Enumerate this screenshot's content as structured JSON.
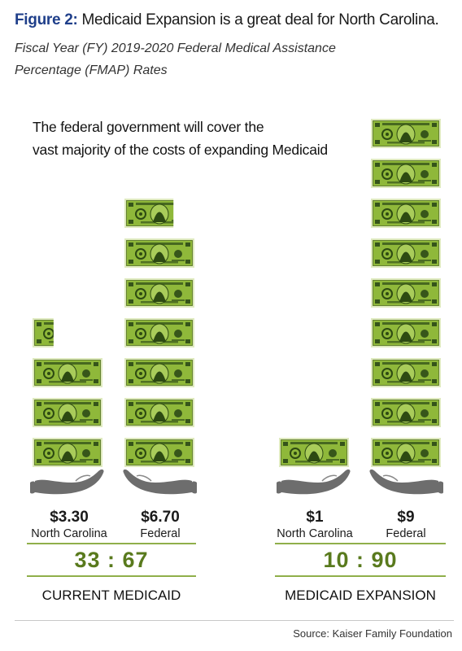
{
  "title": {
    "lead": "Figure 2:",
    "rest": " Medicaid Expansion is a great deal for North Carolina."
  },
  "subtitle_line1": "Fiscal Year (FY) 2019-2020 Federal Medical Assistance",
  "subtitle_line2": "Percentage (FMAP) Rates",
  "annotation_line1": "The federal government will cover the",
  "annotation_line2": "vast majority of the costs of expanding Medicaid",
  "source": "Source: Kaiser Family Foundation",
  "colors": {
    "bill_fill": "#8fb83a",
    "bill_border": "#dfeabf",
    "bill_dark": "#2d4a12",
    "hand": "#6d6d6d",
    "ratio_green": "#597a1d",
    "rule_green": "#8faf4a"
  },
  "icons": {
    "bill": "dollar-bill-icon",
    "hand": "open-hand-icon"
  },
  "chart_data": {
    "type": "pictograph",
    "unit": "one dollar bill",
    "groups": [
      {
        "name": "CURRENT MEDICAID",
        "ratio": "33 : 67",
        "bars": [
          {
            "amount_label": "$3.30",
            "category": "North Carolina",
            "value": 3.3
          },
          {
            "amount_label": "$6.70",
            "category": "Federal",
            "value": 6.7
          }
        ]
      },
      {
        "name": "MEDICAID EXPANSION",
        "ratio": "10 : 90",
        "bars": [
          {
            "amount_label": "$1",
            "category": "North Carolina",
            "value": 1
          },
          {
            "amount_label": "$9",
            "category": "Federal",
            "value": 9
          }
        ]
      }
    ]
  }
}
